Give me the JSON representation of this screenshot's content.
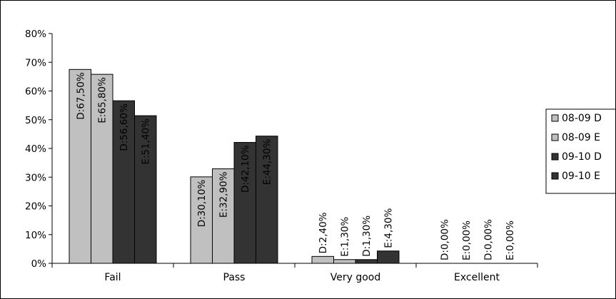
{
  "chart_data": {
    "type": "bar",
    "categories": [
      "Fail",
      "Pass",
      "Very good",
      "Excellent"
    ],
    "series": [
      {
        "name": "08-09 D",
        "color": "#c0c0c0",
        "values": [
          67.5,
          30.1,
          2.4,
          0.0
        ],
        "labels": [
          "D:67,50%",
          "D:30,10%",
          "D:2,40%",
          "D:0,00%"
        ]
      },
      {
        "name": "08-09 E",
        "color": "#c0c0c0",
        "values": [
          65.8,
          32.9,
          1.3,
          0.0
        ],
        "labels": [
          "E:65,80%",
          "E:32,90%",
          "E:1,30%",
          "E:0,00%"
        ]
      },
      {
        "name": "09-10 D",
        "color": "#333333",
        "values": [
          56.6,
          42.1,
          1.3,
          0.0
        ],
        "labels": [
          "D:56,60%",
          "D:42,10%",
          "D:1,30%",
          "D:0,00%"
        ]
      },
      {
        "name": "09-10 E",
        "color": "#333333",
        "values": [
          51.4,
          44.3,
          4.3,
          0.0
        ],
        "labels": [
          "E:51,40%",
          "E:44,30%",
          "E:4,30%",
          "E:0,00%"
        ]
      }
    ],
    "yticks": [
      "0%",
      "10%",
      "20%",
      "30%",
      "40%",
      "50%",
      "60%",
      "70%",
      "80%"
    ],
    "ylim": [
      0,
      80
    ],
    "legend_position": "right",
    "grid": false,
    "title": "",
    "xlabel": "",
    "ylabel": ""
  }
}
